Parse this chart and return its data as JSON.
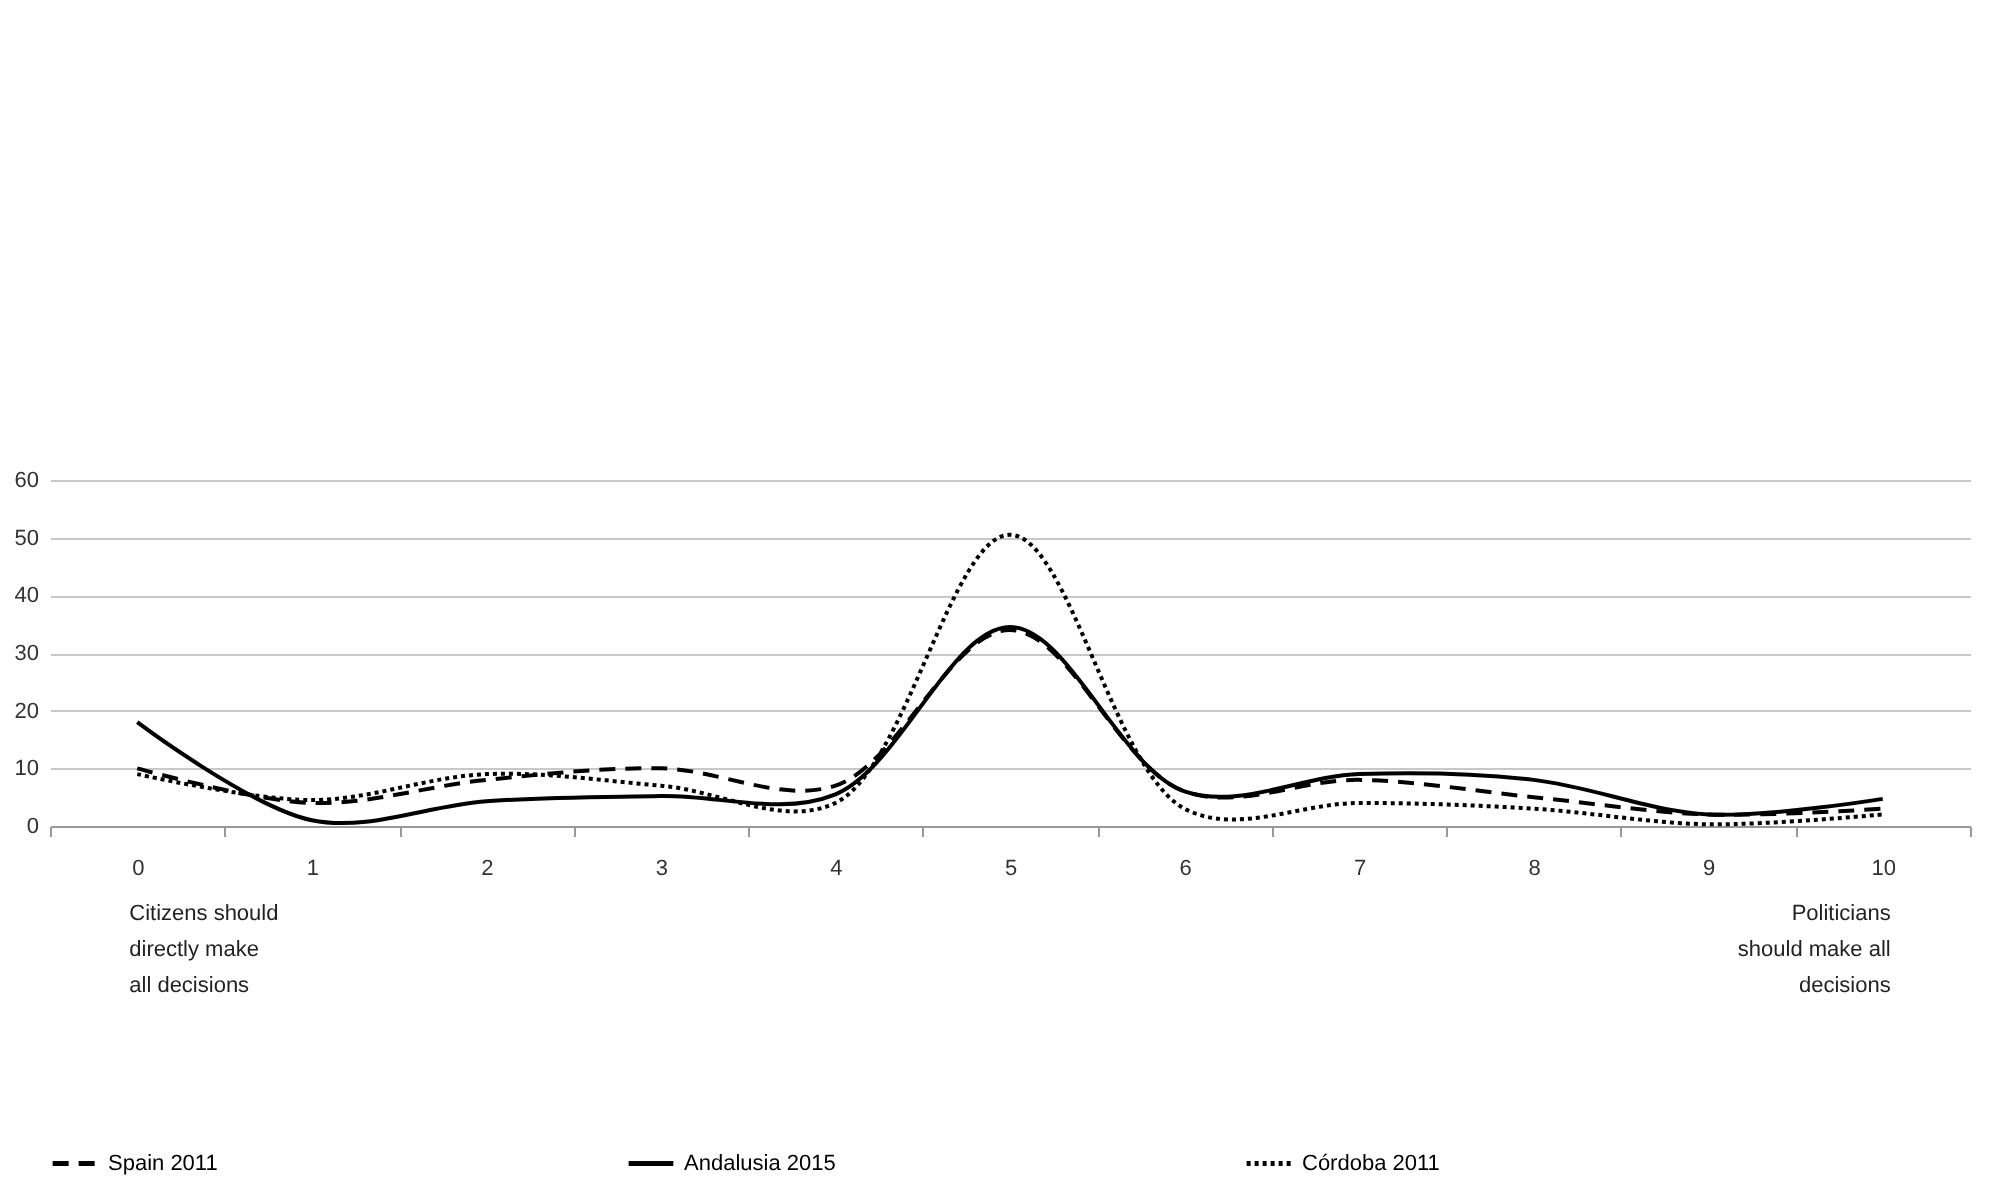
{
  "chart_data": {
    "type": "line",
    "categories": [
      "0",
      "1",
      "2",
      "3",
      "4",
      "5",
      "6",
      "7",
      "8",
      "9",
      "10"
    ],
    "series": [
      {
        "name": "Spain 2011",
        "color": "#000000",
        "line_style": "dashed",
        "values": [
          10,
          4,
          8,
          10,
          7,
          34,
          6,
          8,
          5,
          2,
          3
        ]
      },
      {
        "name": "Andalusia 2015",
        "color": "#000000",
        "line_style": "solid",
        "values": [
          18,
          1,
          4.3,
          5.2,
          5.5,
          34.5,
          6,
          9,
          8,
          2,
          4.7
        ]
      },
      {
        "name": "Córdoba 2011",
        "color": "#000000",
        "line_style": "dotted",
        "values": [
          9,
          4.5,
          9,
          7,
          4,
          50.5,
          3,
          4,
          3,
          0.3,
          2
        ]
      }
    ],
    "ylim": [
      0,
      60
    ],
    "yticks": [
      0,
      10,
      20,
      30,
      40,
      50,
      60
    ],
    "grid": "y",
    "legend": "bottom",
    "marker": "none",
    "annotations": [
      "Citizens should directly make all decisions",
      "Politicians should make all decisions"
    ]
  }
}
